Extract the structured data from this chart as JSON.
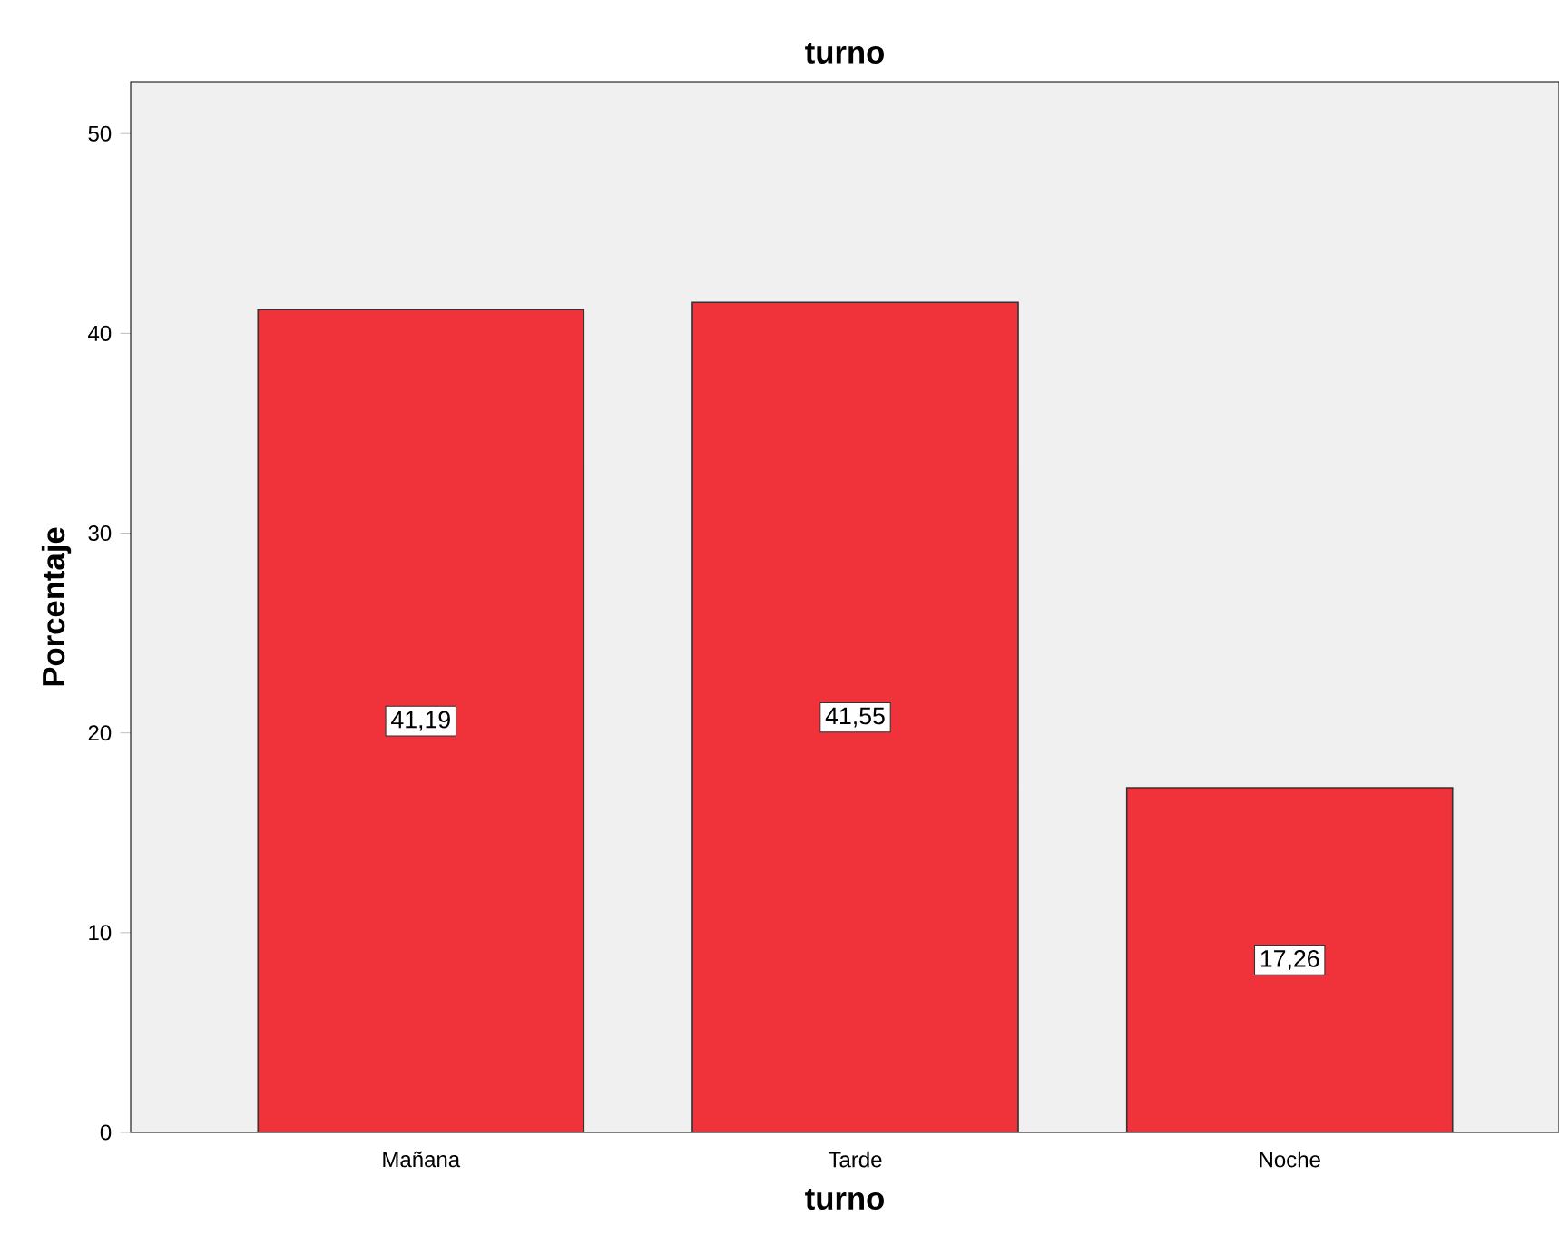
{
  "chart_data": {
    "type": "bar",
    "title": "turno",
    "xlabel": "turno",
    "ylabel": "Porcentaje",
    "categories": [
      "Mañana",
      "Tarde",
      "Noche"
    ],
    "values": [
      41.19,
      41.55,
      17.26
    ],
    "value_labels": [
      "41,19",
      "41,55",
      "17,26"
    ],
    "color": "#f0323a",
    "ylim": [
      0,
      52.6
    ],
    "yticks": [
      0,
      10,
      20,
      30,
      40,
      50
    ]
  }
}
